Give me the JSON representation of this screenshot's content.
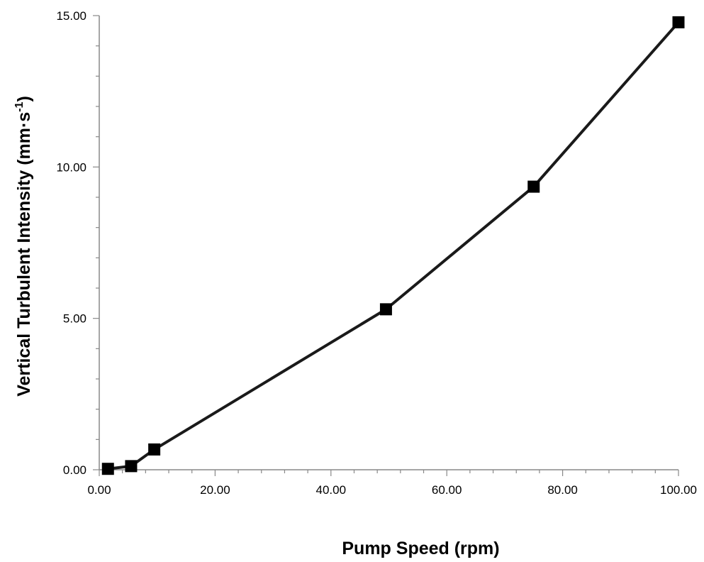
{
  "chart_data": {
    "type": "line",
    "title": "",
    "xlabel": "Pump Speed (rpm)",
    "ylabel": {
      "main": "Vertical Turbulent Intensity (mm·s",
      "sup": "-1",
      "close": ")"
    },
    "xlim": [
      0,
      100
    ],
    "ylim": [
      0,
      15
    ],
    "x_ticks": [
      "0.00",
      "20.00",
      "40.00",
      "60.00",
      "80.00",
      "100.00"
    ],
    "y_ticks": [
      "0.00",
      "5.00",
      "10.00",
      "15.00"
    ],
    "grid": false,
    "legend": "none",
    "series": [
      {
        "x": [
          1.5,
          5.5,
          9.5,
          49.5,
          75,
          100
        ],
        "y": [
          0.03,
          0.12,
          0.67,
          5.3,
          9.35,
          14.78
        ]
      }
    ],
    "colors": {
      "line": "#1a1a1a",
      "marker": "#000000",
      "axis": "#888888"
    }
  }
}
